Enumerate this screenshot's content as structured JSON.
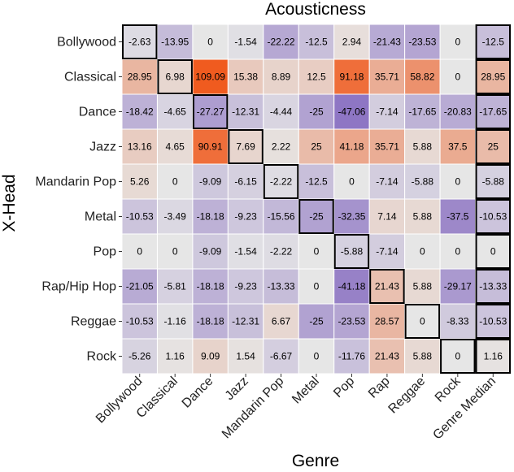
{
  "chart_data": {
    "type": "heatmap",
    "title": "Acousticness",
    "xlabel": "Genre",
    "ylabel": "X-Head",
    "columns": [
      "Bollywood",
      "Classical",
      "Dance",
      "Jazz",
      "Mandarin Pop",
      "Metal",
      "Pop",
      "Rap",
      "Reggae",
      "Rock",
      "Genre Median"
    ],
    "rows": [
      "Bollywood",
      "Classical",
      "Dance",
      "Jazz",
      "Mandarin Pop",
      "Metal",
      "Pop",
      "Rap/Hip Hop",
      "Reggae",
      "Rock"
    ],
    "values": [
      [
        "-2.63",
        "-13.95",
        "0",
        "-1.54",
        "-22.22",
        "-12.5",
        "2.94",
        "-21.43",
        "-23.53",
        "0",
        "-12.5"
      ],
      [
        "28.95",
        "6.98",
        "109.09",
        "15.38",
        "8.89",
        "12.5",
        "91.18",
        "35.71",
        "58.82",
        "0",
        "28.95"
      ],
      [
        "-18.42",
        "-4.65",
        "-27.27",
        "-12.31",
        "-4.44",
        "-25",
        "-47.06",
        "-7.14",
        "-17.65",
        "-20.83",
        "-17.65"
      ],
      [
        "13.16",
        "4.65",
        "90.91",
        "7.69",
        "2.22",
        "25",
        "41.18",
        "35.71",
        "5.88",
        "37.5",
        "25"
      ],
      [
        "5.26",
        "0",
        "-9.09",
        "-6.15",
        "-2.22",
        "-12.5",
        "0",
        "-7.14",
        "-5.88",
        "0",
        "-5.88"
      ],
      [
        "-10.53",
        "-3.49",
        "-18.18",
        "-9.23",
        "-15.56",
        "-25",
        "-32.35",
        "7.14",
        "5.88",
        "-37.5",
        "-10.53"
      ],
      [
        "0",
        "0",
        "-9.09",
        "-1.54",
        "-2.22",
        "0",
        "-5.88",
        "-7.14",
        "0",
        "0",
        "0"
      ],
      [
        "-21.05",
        "-5.81",
        "-18.18",
        "-9.23",
        "-13.33",
        "0",
        "-41.18",
        "21.43",
        "5.88",
        "-29.17",
        "-13.33"
      ],
      [
        "-10.53",
        "-1.16",
        "-18.18",
        "-12.31",
        "6.67",
        "-25",
        "-23.53",
        "28.57",
        "0",
        "-8.33",
        "-10.53"
      ],
      [
        "-5.26",
        "1.16",
        "9.09",
        "1.54",
        "-6.67",
        "0",
        "-11.76",
        "21.43",
        "5.88",
        "0",
        "1.16"
      ]
    ],
    "highlight_diagonal": true,
    "highlight_last_column": true,
    "color_scale": {
      "negative": "#8a70c2",
      "zero": "#e6e6e6",
      "positive": "#f05a1e",
      "negative_limit": -50,
      "positive_limit": 110
    },
    "panel_background": "#ebebeb",
    "grid_color": "#ffffff"
  }
}
